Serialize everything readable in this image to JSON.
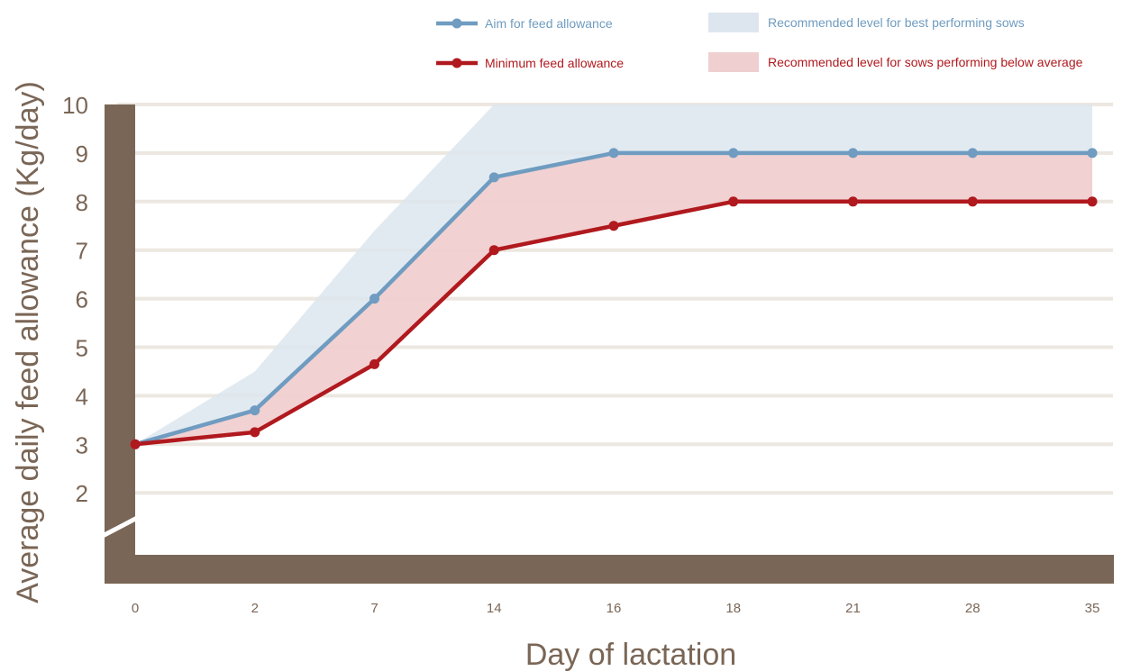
{
  "chart_data": {
    "type": "line",
    "title": "",
    "xlabel": "Day of lactation",
    "ylabel": "Average daily feed allowance (Kg/day)",
    "categories": [
      "0",
      "2",
      "7",
      "14",
      "16",
      "18",
      "21",
      "28",
      "35"
    ],
    "y_ticks": [
      "2",
      "3",
      "4",
      "5",
      "6",
      "7",
      "8",
      "9",
      "10"
    ],
    "ylim": [
      1.3,
      10
    ],
    "y_axis_break": true,
    "grid": true,
    "legend_position": "top",
    "series": [
      {
        "name": "Aim for feed allowance",
        "color": "#6f9cc0",
        "values": [
          3,
          3.7,
          6,
          8.5,
          9,
          9,
          9,
          9,
          9
        ]
      },
      {
        "name": "Minimum feed allowance",
        "color": "#b0191e",
        "values": [
          3,
          3.25,
          4.65,
          7,
          7.5,
          8,
          8,
          8,
          8
        ]
      }
    ],
    "bands": [
      {
        "name": "Recommended level for best performing sows",
        "color": "#dde6ef",
        "upper": [
          3,
          4.5,
          7.4,
          10,
          10,
          10,
          10,
          10,
          10
        ],
        "lower": [
          3,
          3.7,
          6,
          8.5,
          9,
          9,
          9,
          9,
          9
        ]
      },
      {
        "name": "Recommended level for sows performing below average",
        "color": "#f0cfd0",
        "upper": [
          3,
          3.7,
          6,
          8.5,
          9,
          9,
          9,
          9,
          9
        ],
        "lower": [
          3,
          3.25,
          4.65,
          7,
          7.5,
          8,
          8,
          8,
          8
        ]
      }
    ],
    "colors": {
      "axis": "#7a6656",
      "grid": "#ece8e1",
      "text": "#7a6656"
    }
  }
}
